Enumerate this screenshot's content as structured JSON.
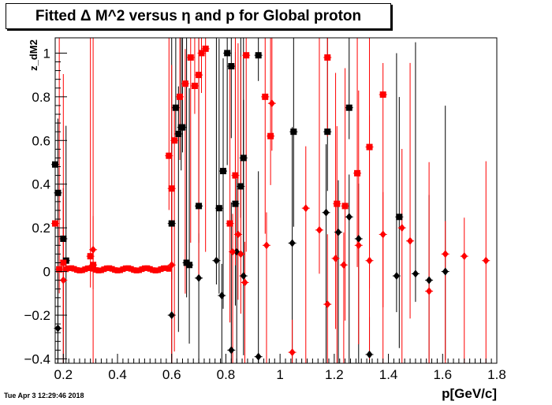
{
  "chart_data": {
    "type": "scatter",
    "title": "Fitted Δ M^2 versus η and p for Global proton",
    "xlabel": "p[GeV/c]",
    "ylabel": "z_dM2",
    "xlim": [
      0.17,
      1.8
    ],
    "ylim": [
      -0.42,
      1.07
    ],
    "x_ticks": [
      "0.2",
      "0.4",
      "0.6",
      "0.8",
      "1",
      "1.2",
      "1.4",
      "1.6",
      "1.8"
    ],
    "y_ticks": [
      "−0.4",
      "−0.2",
      "0",
      "0.2",
      "0.4",
      "0.6",
      "0.8",
      "1"
    ],
    "timestamp": "Tue Apr  3 12:29:46 2018",
    "colors": {
      "black": "#000000",
      "red": "#ff0000"
    },
    "series": [
      {
        "color": "black",
        "marker": "square",
        "x": [
          0.17,
          0.18,
          0.2,
          0.21,
          0.6,
          0.615,
          0.625,
          0.635,
          0.64,
          0.655,
          0.665,
          0.7,
          0.775,
          0.79,
          0.805,
          0.82,
          0.835,
          0.855,
          0.865,
          0.92,
          1.05,
          1.175,
          1.255,
          1.44
        ],
        "y": [
          0.49,
          0.36,
          0.15,
          0.05,
          0.22,
          0.75,
          0.63,
          0.66,
          0.66,
          0.04,
          0.03,
          0.3,
          0.29,
          0.46,
          1.0,
          0.94,
          0.31,
          0.39,
          0.52,
          0.99,
          0.64,
          0.64,
          0.75,
          0.25
        ]
      },
      {
        "color": "black",
        "marker": "diamond",
        "x": [
          0.18,
          0.6,
          0.7,
          0.765,
          0.785,
          0.82,
          0.84,
          0.865,
          0.92,
          1.045,
          1.17,
          1.215,
          1.255,
          1.29,
          1.33,
          1.43,
          1.5,
          1.55,
          1.61
        ],
        "y": [
          -0.26,
          -0.2,
          -0.03,
          0.05,
          -0.11,
          -0.36,
          0.09,
          -0.02,
          -0.39,
          0.13,
          0.27,
          0.18,
          0.25,
          0.15,
          -0.38,
          -0.02,
          -0.01,
          -0.04,
          0.0
        ]
      },
      {
        "color": "red",
        "marker": "square",
        "x": [
          0.17,
          0.185,
          0.2,
          0.3,
          0.31,
          0.59,
          0.6,
          0.61,
          0.63,
          0.65,
          0.67,
          0.685,
          0.7,
          0.71,
          0.725,
          0.815,
          0.835,
          0.875,
          0.945,
          0.965,
          1.175,
          1.21,
          1.24,
          1.285,
          1.33,
          1.38
        ],
        "y": [
          0.22,
          0.01,
          0.04,
          0.07,
          0.03,
          0.53,
          0.38,
          0.6,
          0.8,
          0.86,
          0.98,
          0.85,
          0.9,
          1.0,
          1.02,
          0.22,
          0.44,
          0.99,
          0.8,
          0.62,
          0.98,
          0.31,
          0.3,
          0.45,
          0.57,
          0.81
        ]
      },
      {
        "color": "red",
        "marker": "diamond",
        "x": [
          0.2,
          0.31,
          0.6,
          0.825,
          0.845,
          0.855,
          0.87,
          0.95,
          0.97,
          1.045,
          1.095,
          1.145,
          1.175,
          1.205,
          1.235,
          1.29,
          1.33,
          1.38,
          1.45,
          1.48,
          1.55,
          1.61,
          1.68,
          1.76
        ],
        "y": [
          -0.04,
          0.1,
          0.03,
          0.09,
          0.17,
          0.08,
          -0.05,
          0.12,
          0.77,
          -0.37,
          0.29,
          0.19,
          -0.15,
          0.06,
          0.03,
          0.12,
          0.05,
          0.17,
          0.2,
          0.14,
          -0.09,
          0.08,
          0.07,
          0.05
        ]
      },
      {
        "color": "red",
        "marker": "square",
        "note": "dense near-zero band",
        "band_x": [
          0.21,
          0.6
        ],
        "band_y": 0.01
      }
    ]
  }
}
